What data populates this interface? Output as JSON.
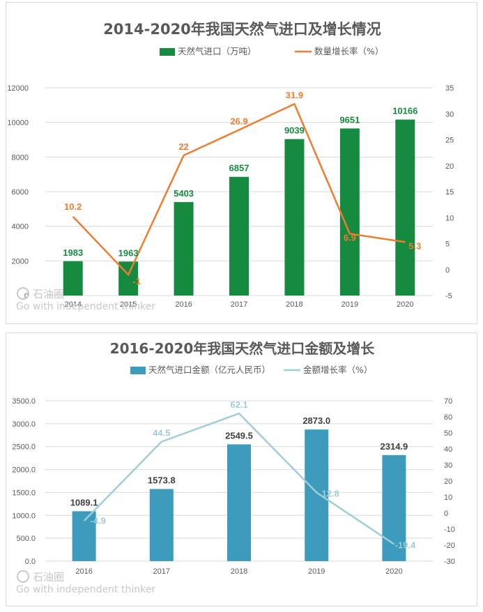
{
  "chart_data": [
    {
      "type": "bar",
      "title": "2014-2020年我国天然气进口及增长情况",
      "categories": [
        "2014",
        "2015",
        "2016",
        "2017",
        "2018",
        "2019",
        "2020"
      ],
      "series": [
        {
          "name": "天然气进口（万吨）",
          "type": "bar",
          "axis": "left",
          "color": "#168a3e",
          "values": [
            1983,
            1963,
            5403,
            6857,
            9039,
            9651,
            10166
          ],
          "labels": [
            "1983",
            "1963",
            "5403",
            "6857",
            "9039",
            "9651",
            "10166"
          ]
        },
        {
          "name": "数量增长率（%）",
          "type": "line",
          "axis": "right",
          "color": "#ed7d31",
          "values": [
            10.2,
            -1,
            22,
            26.9,
            31.9,
            6.9,
            5.3
          ],
          "labels": [
            "10.2",
            "-1",
            "22",
            "26.9",
            "31.9",
            "6.9",
            "5.3"
          ]
        }
      ],
      "left_axis": {
        "min": 0,
        "max": 12000,
        "step": 2000,
        "tick_labels": [
          "0",
          "2000",
          "4000",
          "6000",
          "8000",
          "10000",
          "12000"
        ]
      },
      "right_axis": {
        "min": -5,
        "max": 35,
        "step": 5,
        "tick_labels": [
          "-5",
          "0",
          "5",
          "10",
          "15",
          "20",
          "25",
          "30",
          "35"
        ]
      },
      "grid": true,
      "legend": "top-center",
      "watermark": {
        "brand": "石油圈",
        "slogan": "Go with independent thinker"
      }
    },
    {
      "type": "bar",
      "title": "2016-2020年我国天然气进口金额及增长",
      "categories": [
        "2016",
        "2017",
        "2018",
        "2019",
        "2020"
      ],
      "series": [
        {
          "name": "天然气进口金额（亿元人民币）",
          "type": "bar",
          "axis": "left",
          "color": "#3d9bbd",
          "values": [
            1089.1,
            1573.8,
            2549.5,
            2873.0,
            2314.9
          ],
          "labels": [
            "1089.1",
            "1573.8",
            "2549.5",
            "2873.0",
            "2314.9"
          ]
        },
        {
          "name": "金额增长率（%）",
          "type": "line",
          "axis": "right",
          "color": "#9fcdd8",
          "values": [
            -4.9,
            44.5,
            62.1,
            12.8,
            -19.4
          ],
          "labels": [
            "-4.9",
            "44.5",
            "62.1",
            "12.8",
            "-19.4"
          ]
        }
      ],
      "left_axis": {
        "min": 0,
        "max": 3500,
        "step": 500,
        "tick_labels": [
          "0.0",
          "500.0",
          "1000.0",
          "1500.0",
          "2000.0",
          "2500.0",
          "3000.0",
          "3500.0"
        ]
      },
      "right_axis": {
        "min": -30,
        "max": 70,
        "step": 10,
        "tick_labels": [
          "-30",
          "-20",
          "-10",
          "0",
          "10",
          "20",
          "30",
          "40",
          "50",
          "60",
          "70"
        ]
      },
      "grid": true,
      "legend": "top-center",
      "watermark": {
        "brand": "石油圈",
        "slogan": "Go with independent thinker"
      }
    }
  ]
}
